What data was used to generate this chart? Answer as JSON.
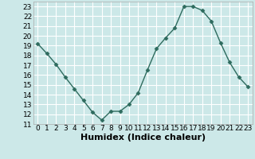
{
  "x": [
    0,
    1,
    2,
    3,
    4,
    5,
    6,
    7,
    8,
    9,
    10,
    11,
    12,
    13,
    14,
    15,
    16,
    17,
    18,
    19,
    20,
    21,
    22,
    23
  ],
  "y": [
    19.2,
    18.2,
    17.1,
    15.8,
    14.6,
    13.4,
    12.2,
    11.4,
    12.3,
    12.3,
    13.0,
    14.2,
    16.5,
    18.7,
    19.8,
    20.8,
    23.0,
    23.0,
    22.6,
    21.5,
    19.3,
    17.3,
    15.8,
    14.8
  ],
  "xlabel": "Humidex (Indice chaleur)",
  "line_color": "#2e6b5e",
  "marker": "D",
  "marker_size": 2.5,
  "bg_color": "#cce8e8",
  "grid_color": "#ffffff",
  "xlim": [
    -0.5,
    23.5
  ],
  "ylim": [
    11,
    23.5
  ],
  "yticks": [
    11,
    12,
    13,
    14,
    15,
    16,
    17,
    18,
    19,
    20,
    21,
    22,
    23
  ],
  "xticks": [
    0,
    1,
    2,
    3,
    4,
    5,
    6,
    7,
    8,
    9,
    10,
    11,
    12,
    13,
    14,
    15,
    16,
    17,
    18,
    19,
    20,
    21,
    22,
    23
  ],
  "xlabel_fontsize": 8,
  "tick_fontsize": 6.5,
  "line_width": 1.0
}
